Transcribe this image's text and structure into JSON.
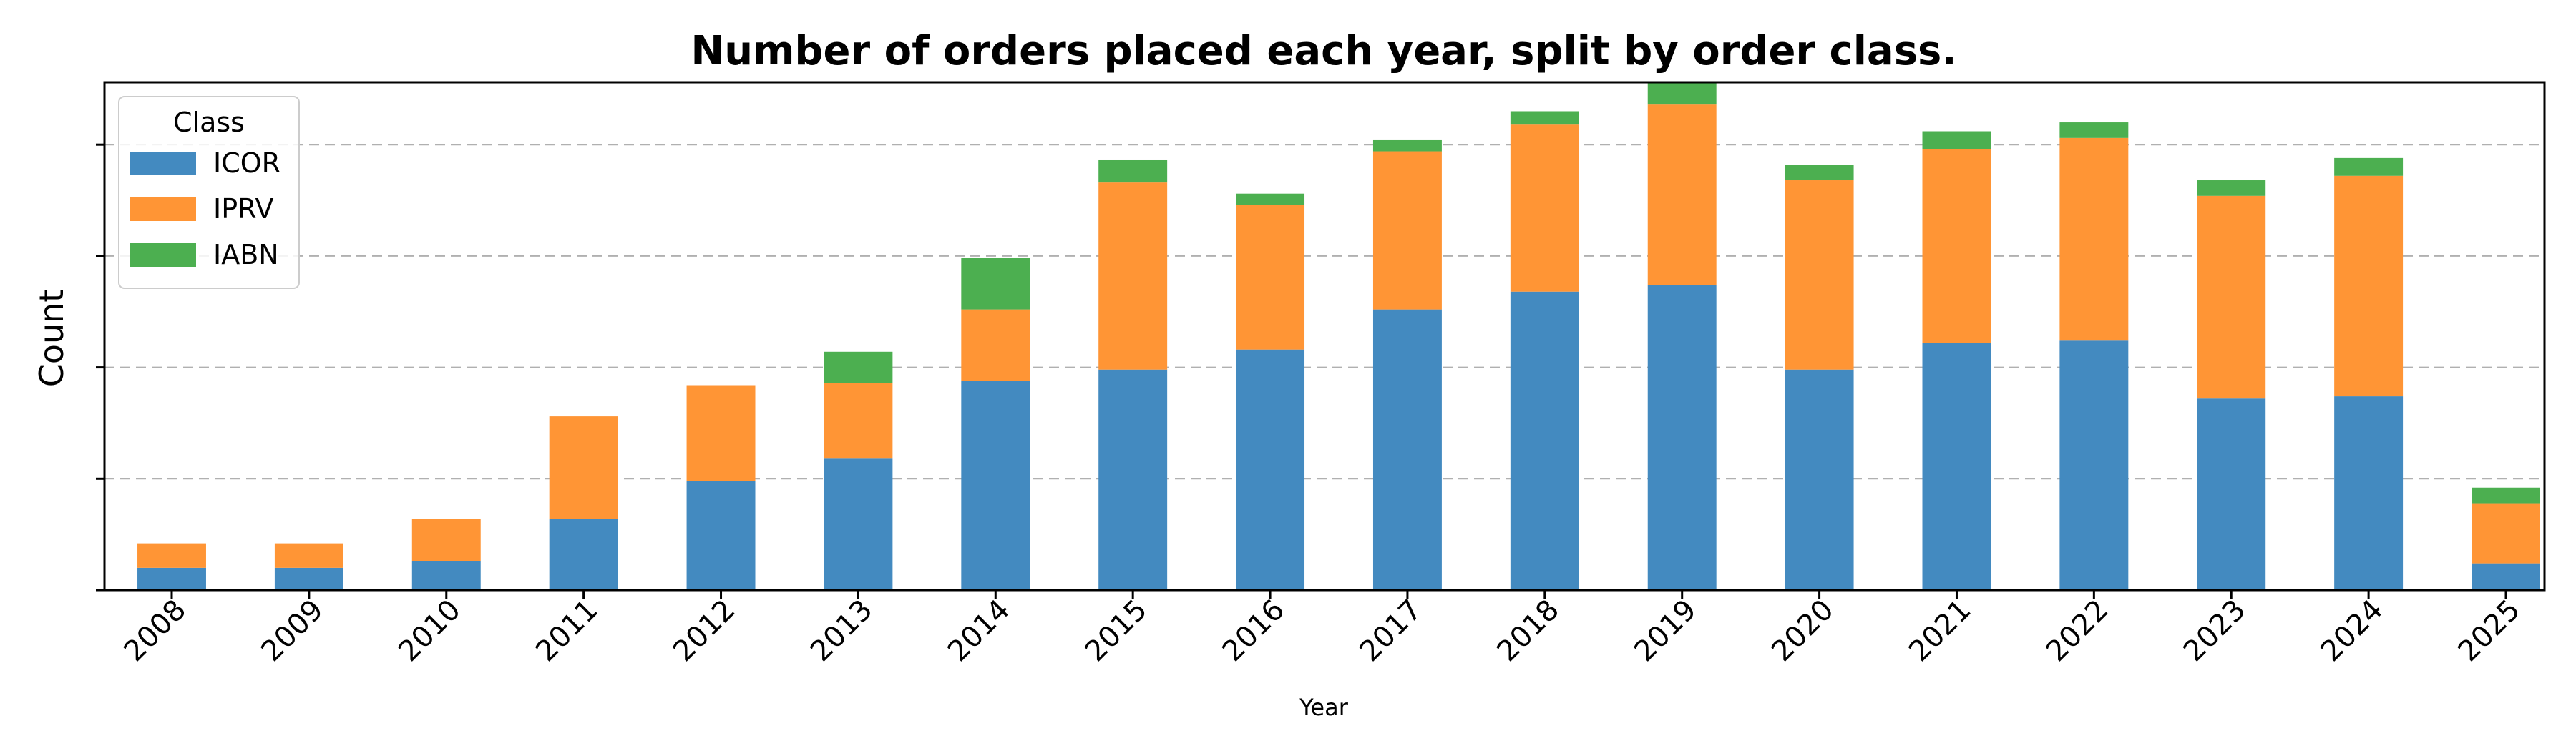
{
  "chart_data": {
    "type": "bar",
    "stacked": true,
    "title": "Number of orders placed each year, split by order class.",
    "xlabel": "Year",
    "ylabel": "Count",
    "categories": [
      "2008",
      "2009",
      "2010",
      "2011",
      "2012",
      "2013",
      "2014",
      "2015",
      "2016",
      "2017",
      "2018",
      "2019",
      "2020",
      "2021",
      "2022",
      "2023",
      "2024",
      "2025"
    ],
    "series": [
      {
        "name": "ICOR",
        "color": "#438ac0",
        "values": [
          10,
          10,
          13,
          32,
          49,
          59,
          94,
          99,
          108,
          126,
          134,
          137,
          99,
          111,
          112,
          86,
          87,
          12
        ]
      },
      {
        "name": "IPRV",
        "color": "#ff9535",
        "values": [
          11,
          11,
          19,
          46,
          43,
          34,
          32,
          84,
          65,
          71,
          75,
          81,
          85,
          87,
          91,
          91,
          99,
          27
        ]
      },
      {
        "name": "IABN",
        "color": "#4caf50",
        "values": [
          0,
          0,
          0,
          0,
          0,
          14,
          23,
          10,
          5,
          5,
          6,
          10,
          7,
          8,
          7,
          7,
          8,
          7
        ]
      }
    ],
    "ylim": [
      0,
      228
    ],
    "gridlines": [
      50,
      100,
      150,
      200
    ],
    "grid": true,
    "yticklabels_shown": false,
    "legend": {
      "title": "Class",
      "position": "top-left"
    }
  }
}
